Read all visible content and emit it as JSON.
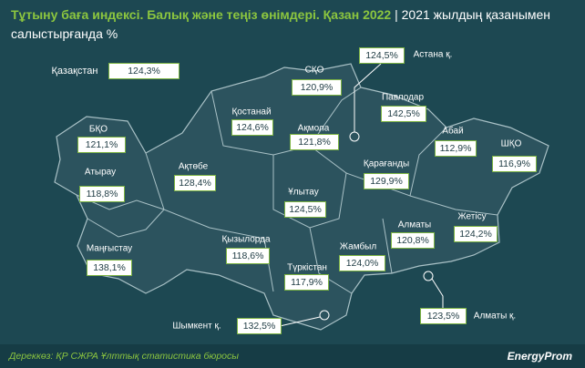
{
  "header": {
    "title": "Тұтыну баға индексі. Балық және теңіз өнімдері. Қазан 2022",
    "separator": "|",
    "subtitle": "2021 жылдың қазанымен салыстырғанда %"
  },
  "regions": [
    {
      "name": "Қазақстан",
      "value": "124,3%"
    },
    {
      "name": "СҚО",
      "value": "120,9%"
    },
    {
      "name": "Астана қ.",
      "value": "124,5%"
    },
    {
      "name": "Павлодар",
      "value": "142,5%"
    },
    {
      "name": "Қостанай",
      "value": "124,6%"
    },
    {
      "name": "Ақмола",
      "value": "121,8%"
    },
    {
      "name": "БҚО",
      "value": "121,1%"
    },
    {
      "name": "Абай",
      "value": "112,9%"
    },
    {
      "name": "ШҚО",
      "value": "116,9%"
    },
    {
      "name": "Атырау",
      "value": "118,8%"
    },
    {
      "name": "Ақтөбе",
      "value": "128,4%"
    },
    {
      "name": "Қарағанды",
      "value": "129,9%"
    },
    {
      "name": "Ұлытау",
      "value": "124,5%"
    },
    {
      "name": "Жетісу",
      "value": "124,2%"
    },
    {
      "name": "Алматы",
      "value": "120,8%"
    },
    {
      "name": "Қызылорда",
      "value": "118,6%"
    },
    {
      "name": "Маңғыстау",
      "value": "138,1%"
    },
    {
      "name": "Жамбыл",
      "value": "124,0%"
    },
    {
      "name": "Түркістан",
      "value": "117,9%"
    },
    {
      "name": "Алматы қ.",
      "value": "123,5%"
    },
    {
      "name": "Шымкент қ.",
      "value": "132,5%"
    }
  ],
  "footer": {
    "source": "Дереккөз: ҚР СЖРА Ұлттық статистика бюросы",
    "brand": "EnergyProm"
  }
}
